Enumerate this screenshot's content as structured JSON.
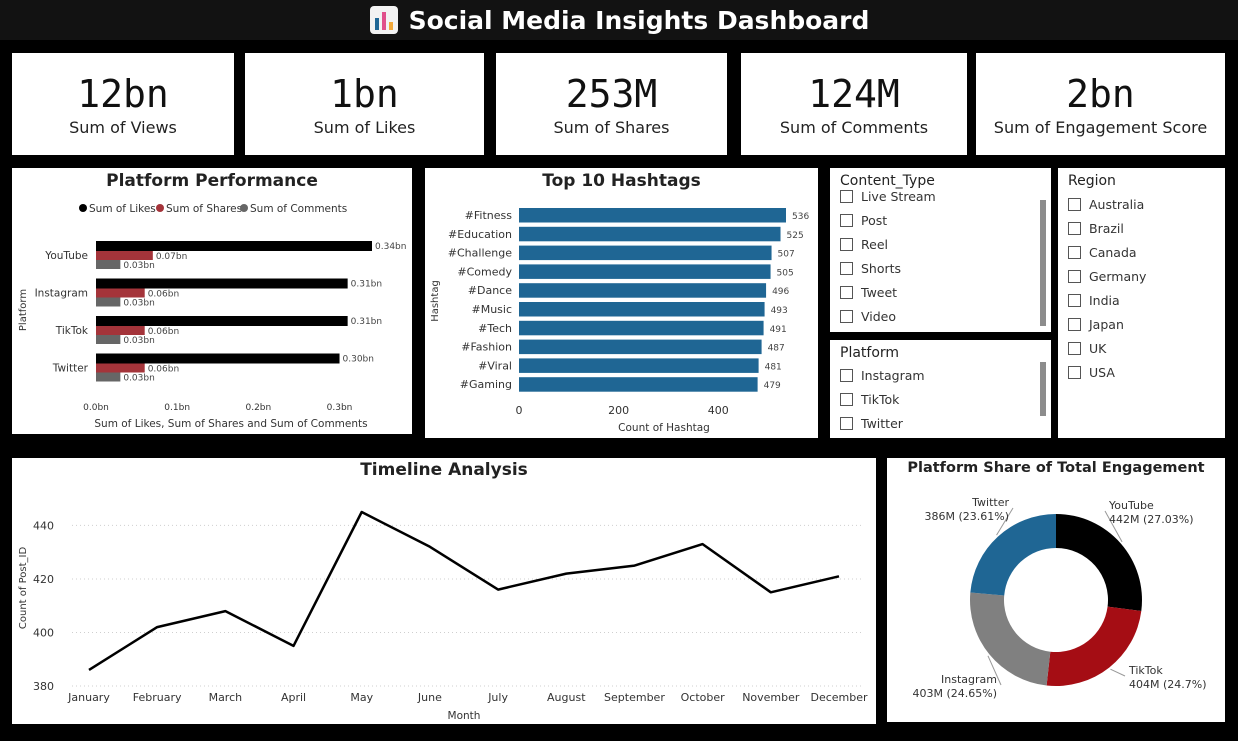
{
  "dashboard": {
    "title": "Social Media Insights Dashboard",
    "icon": "bar-chart-icon"
  },
  "kpis": [
    {
      "value": "12bn",
      "label": "Sum of Views"
    },
    {
      "value": "1bn",
      "label": "Sum of Likes"
    },
    {
      "value": "253M",
      "label": "Sum of Shares"
    },
    {
      "value": "124M",
      "label": "Sum of Comments"
    },
    {
      "value": "2bn",
      "label": "Sum of Engagement Score"
    }
  ],
  "slicers": {
    "content_type": {
      "title": "Content_Type",
      "items": [
        "Live Stream",
        "Post",
        "Reel",
        "Shorts",
        "Tweet",
        "Video"
      ]
    },
    "platform": {
      "title": "Platform",
      "items": [
        "Instagram",
        "TikTok",
        "Twitter"
      ]
    },
    "region": {
      "title": "Region",
      "items": [
        "Australia",
        "Brazil",
        "Canada",
        "Germany",
        "India",
        "Japan",
        "UK",
        "USA"
      ]
    }
  },
  "colors": {
    "likes": "#000000",
    "shares": "#a4343a",
    "comments": "#666666",
    "hashtag_bar": "#1f6694",
    "youtube": "#000000",
    "tiktok": "#a50d14",
    "instagram": "#808080",
    "twitter": "#1f6694"
  },
  "chart_data": [
    {
      "id": "platform_performance",
      "type": "bar",
      "orientation": "horizontal",
      "title": "Platform Performance",
      "xlabel": "Sum of Likes, Sum of Shares and Sum of Comments",
      "ylabel": "Platform",
      "categories": [
        "YouTube",
        "Instagram",
        "TikTok",
        "Twitter"
      ],
      "series": [
        {
          "name": "Sum of Likes",
          "values": [
            0.34,
            0.31,
            0.31,
            0.3
          ],
          "labels": [
            "0.34bn",
            "0.31bn",
            "0.31bn",
            "0.30bn"
          ]
        },
        {
          "name": "Sum of Shares",
          "values": [
            0.07,
            0.06,
            0.06,
            0.06
          ],
          "labels": [
            "0.07bn",
            "0.06bn",
            "0.06bn",
            "0.06bn"
          ]
        },
        {
          "name": "Sum of Comments",
          "values": [
            0.03,
            0.03,
            0.03,
            0.03
          ],
          "labels": [
            "0.03bn",
            "0.03bn",
            "0.03bn",
            "0.03bn"
          ]
        }
      ],
      "xticks": [
        "0.0bn",
        "0.1bn",
        "0.2bn",
        "0.3bn"
      ],
      "xlim": [
        0,
        0.34
      ],
      "legend": "top"
    },
    {
      "id": "top_hashtags",
      "type": "bar",
      "orientation": "horizontal",
      "title": "Top 10 Hashtags",
      "xlabel": "Count of Hashtag",
      "ylabel": "Hashtag",
      "categories": [
        "#Fitness",
        "#Education",
        "#Challenge",
        "#Comedy",
        "#Dance",
        "#Music",
        "#Tech",
        "#Fashion",
        "#Viral",
        "#Gaming"
      ],
      "values": [
        536,
        525,
        507,
        505,
        496,
        493,
        491,
        487,
        481,
        479
      ],
      "xticks": [
        "0",
        "200",
        "400"
      ],
      "xlim": [
        0,
        536
      ]
    },
    {
      "id": "timeline",
      "type": "line",
      "title": "Timeline Analysis",
      "xlabel": "Month",
      "ylabel": "Count of Post_ID",
      "categories": [
        "January",
        "February",
        "March",
        "April",
        "May",
        "June",
        "July",
        "August",
        "September",
        "October",
        "November",
        "December"
      ],
      "values": [
        386,
        402,
        408,
        395,
        445,
        432,
        416,
        422,
        425,
        433,
        415,
        421
      ],
      "yticks": [
        "380",
        "400",
        "420",
        "440"
      ],
      "ylim": [
        380,
        448
      ],
      "grid": true
    },
    {
      "id": "engagement_share",
      "type": "pie",
      "variant": "donut",
      "title": "Platform Share of Total Engagement",
      "slices": [
        {
          "name": "YouTube",
          "value": 442,
          "label": "442M (27.03%)"
        },
        {
          "name": "TikTok",
          "value": 404,
          "label": "404M (24.7%)"
        },
        {
          "name": "Instagram",
          "value": 403,
          "label": "403M (24.65%)"
        },
        {
          "name": "Twitter",
          "value": 386,
          "label": "386M (23.61%)"
        }
      ]
    }
  ]
}
